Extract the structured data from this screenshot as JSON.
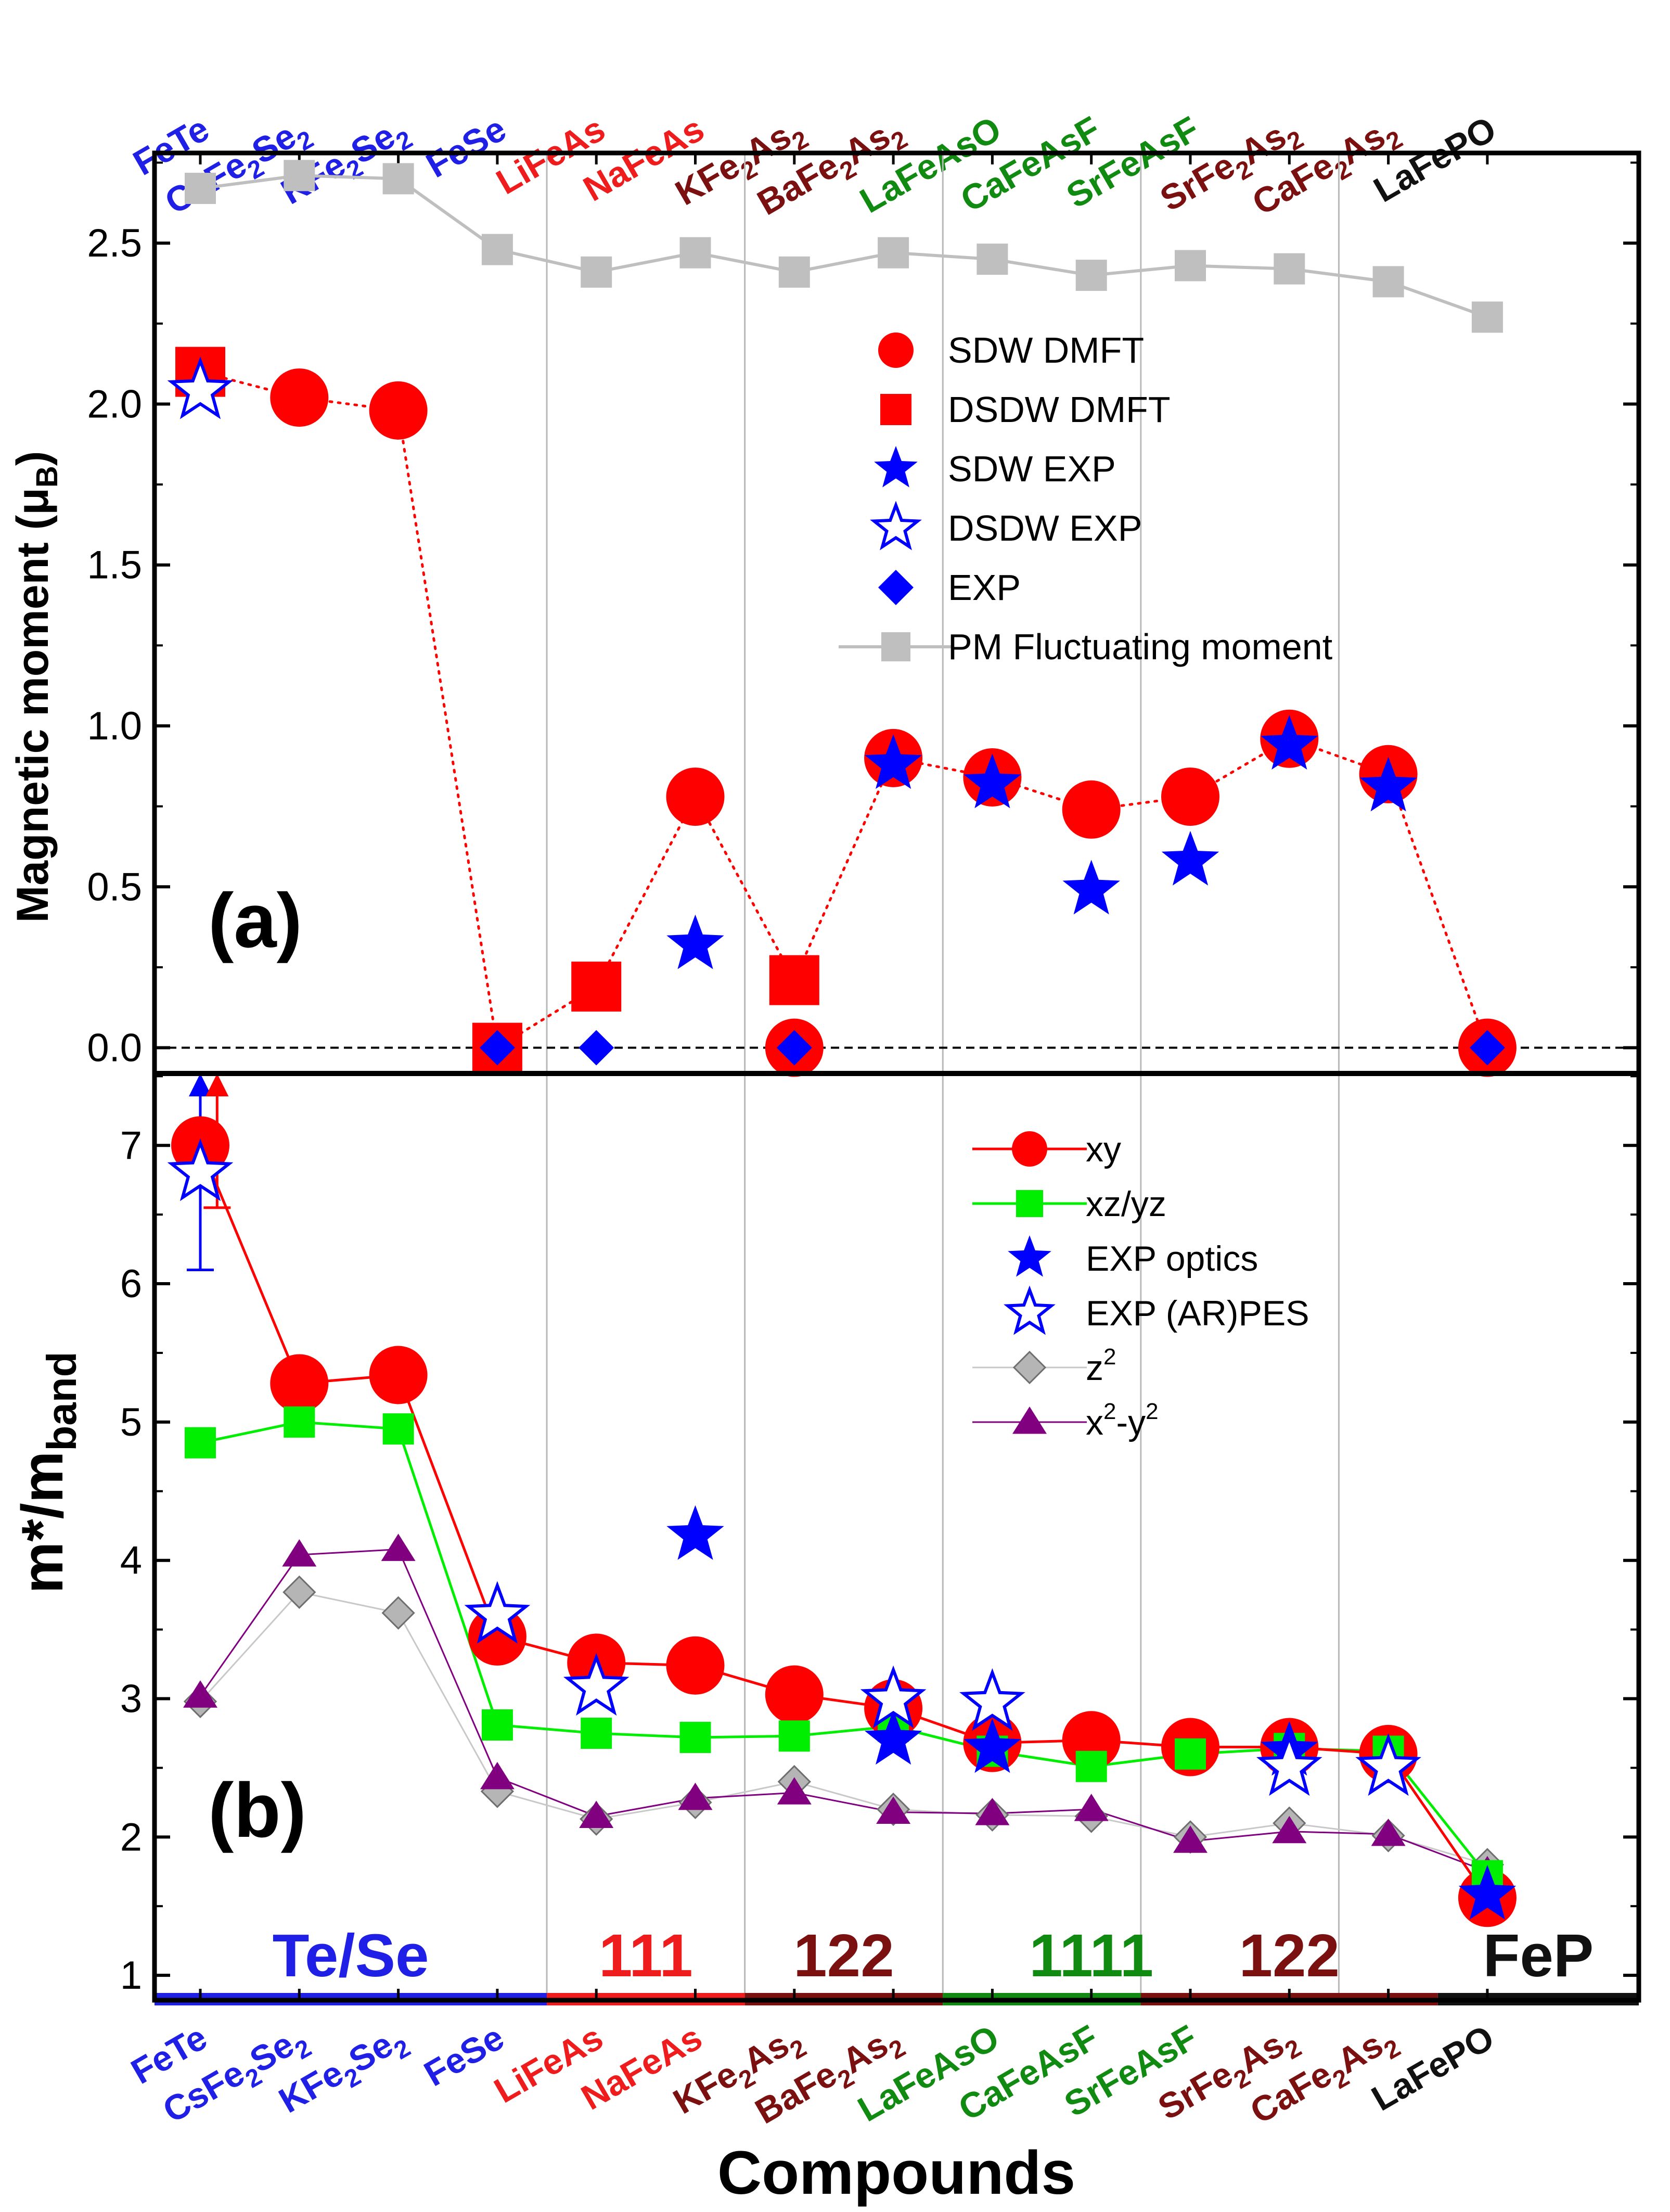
{
  "figure": {
    "xlabel": "Compounds",
    "compounds": [
      "FeTe",
      "CsFe2Se2",
      "KFe2Se2",
      "FeSe",
      "LiFeAs",
      "NaFeAs",
      "KFe2As2",
      "BaFe2As2",
      "LaFeAsO",
      "CaFeAsF",
      "SrFeAsF",
      "SrFe2As2",
      "CaFe2As2",
      "LaFePO"
    ],
    "top_labels": [
      {
        "base": "FeTe"
      },
      {
        "parts": [
          {
            "t": "CsFe"
          },
          {
            "t": "2",
            "sub": true
          },
          {
            "t": "Se"
          },
          {
            "t": "2",
            "sub": true
          }
        ]
      },
      {
        "parts": [
          {
            "t": "KFe"
          },
          {
            "t": "2",
            "sub": true
          },
          {
            "t": "Se"
          },
          {
            "t": "2",
            "sub": true
          }
        ]
      },
      {
        "base": "FeSe"
      },
      {
        "base": "LiFeAs"
      },
      {
        "base": "NaFeAs"
      },
      {
        "parts": [
          {
            "t": "KFe"
          },
          {
            "t": "2",
            "sub": true
          },
          {
            "t": "As"
          },
          {
            "t": "2",
            "sub": true
          }
        ]
      },
      {
        "parts": [
          {
            "t": "BaFe"
          },
          {
            "t": "2",
            "sub": true
          },
          {
            "t": "As"
          },
          {
            "t": "2",
            "sub": true
          }
        ]
      },
      {
        "base": "LaFeAsO"
      },
      {
        "base": "CaFeAsF"
      },
      {
        "base": "SrFeAsF"
      },
      {
        "parts": [
          {
            "t": "SrFe"
          },
          {
            "t": "2",
            "sub": true
          },
          {
            "t": "As"
          },
          {
            "t": "2",
            "sub": true
          }
        ]
      },
      {
        "parts": [
          {
            "t": "CaFe"
          },
          {
            "t": "2",
            "sub": true
          },
          {
            "t": "As"
          },
          {
            "t": "2",
            "sub": true
          }
        ]
      },
      {
        "base": "LaFePO"
      }
    ],
    "label_colors": [
      "#1f1fe6",
      "#1f1fe6",
      "#1f1fe6",
      "#1f1fe6",
      "#ee1c1c",
      "#ee1c1c",
      "#7a1010",
      "#7a1010",
      "#118a11",
      "#118a11",
      "#118a11",
      "#7a1010",
      "#7a1010",
      "#111111"
    ],
    "families": [
      {
        "name": "Te/Se",
        "from": 1,
        "to": 4,
        "color": "#1f1fe6"
      },
      {
        "name": "111",
        "from": 5,
        "to": 6,
        "color": "#ee1c1c"
      },
      {
        "name": "122",
        "from": 7,
        "to": 8,
        "color": "#7a1010"
      },
      {
        "name": "1111",
        "from": 9,
        "to": 11,
        "color": "#118a11"
      },
      {
        "name": "122",
        "from": 11,
        "to": 13,
        "color": "#7a1010"
      },
      {
        "name": "FeP",
        "from": 14,
        "to": 14,
        "color": "#111111"
      }
    ],
    "separators": [
      4.5,
      6.5,
      8.5,
      10.5,
      12.5
    ],
    "colors": {
      "red": "#ff0000",
      "green": "#00ee00",
      "blue": "#0000ff",
      "gray": "#bfbfbf",
      "purple": "#800080",
      "diamond_gray": "#b5b5b5"
    }
  },
  "chart_data": [
    {
      "panel": "(a)",
      "type": "scatter",
      "ylabel": "Magnetic moment (μ",
      "ylabel_sub": "B",
      "ylabel_end": ")",
      "ylim": [
        -0.08,
        2.78
      ],
      "yticks": [
        "0.0",
        "0.5",
        "1.0",
        "1.5",
        "2.0",
        "2.5"
      ],
      "x": [
        1,
        2,
        3,
        4,
        5,
        6,
        7,
        8,
        9,
        10,
        11,
        12,
        13,
        14
      ],
      "series": [
        {
          "name": "SDW DMFT",
          "marker": "circle",
          "points": [
            [
              2,
              2.02
            ],
            [
              3,
              1.98
            ],
            [
              6,
              0.78
            ],
            [
              7,
              0.0
            ],
            [
              8,
              0.9
            ],
            [
              9,
              0.84
            ],
            [
              10,
              0.74
            ],
            [
              11,
              0.78
            ],
            [
              12,
              0.96
            ],
            [
              13,
              0.85
            ],
            [
              14,
              0.0
            ]
          ]
        },
        {
          "name": "DSDW DMFT",
          "marker": "square",
          "points": [
            [
              1,
              2.1
            ],
            [
              4,
              0.0
            ],
            [
              5,
              0.19
            ],
            [
              7,
              0.21
            ]
          ]
        },
        {
          "name": "SDW EXP",
          "marker": "star-filled",
          "points": [
            [
              6,
              0.32
            ],
            [
              8,
              0.88
            ],
            [
              9,
              0.82
            ],
            [
              10,
              0.49
            ],
            [
              11,
              0.58
            ],
            [
              12,
              0.94
            ],
            [
              13,
              0.81
            ]
          ]
        },
        {
          "name": "DSDW EXP",
          "marker": "star-open",
          "points": [
            [
              1,
              2.04
            ]
          ]
        },
        {
          "name": "EXP",
          "marker": "diamond",
          "points": [
            [
              4,
              0.0
            ],
            [
              5,
              0.0
            ],
            [
              7,
              0.0
            ],
            [
              14,
              0.0
            ]
          ]
        },
        {
          "name": "PM Fluctuating moment",
          "marker": "square-line",
          "values": [
            2.67,
            2.71,
            2.7,
            2.48,
            2.41,
            2.47,
            2.41,
            2.47,
            2.45,
            2.4,
            2.43,
            2.42,
            2.38,
            2.27
          ]
        }
      ],
      "dmft_path": [
        [
          1,
          2.1
        ],
        [
          2,
          2.02
        ],
        [
          3,
          1.98
        ],
        [
          4,
          0.0
        ],
        [
          5,
          0.19
        ],
        [
          6,
          0.78
        ],
        [
          7,
          0.21
        ],
        [
          8,
          0.9
        ],
        [
          9,
          0.84
        ],
        [
          10,
          0.74
        ],
        [
          11,
          0.78
        ],
        [
          12,
          0.96
        ],
        [
          13,
          0.85
        ],
        [
          14,
          0.0
        ]
      ],
      "zero_line": 0.0
    },
    {
      "panel": "(b)",
      "type": "line",
      "ylabel": "m*/m",
      "ylabel_sub": "band",
      "ylim": [
        0.82,
        7.52
      ],
      "yticks": [
        "1",
        "2",
        "3",
        "4",
        "5",
        "6",
        "7"
      ],
      "x": [
        1,
        2,
        3,
        4,
        5,
        6,
        7,
        8,
        9,
        10,
        11,
        12,
        13,
        14
      ],
      "series": [
        {
          "name": "xy",
          "marker": "circle-line",
          "values": [
            7.0,
            5.28,
            5.34,
            3.45,
            3.26,
            3.24,
            3.03,
            2.93,
            2.68,
            2.7,
            2.65,
            2.65,
            2.6,
            1.56
          ]
        },
        {
          "name": "xz/yz",
          "marker": "square-line",
          "values": [
            4.85,
            5.0,
            4.95,
            2.81,
            2.75,
            2.72,
            2.73,
            2.8,
            2.62,
            2.51,
            2.6,
            2.64,
            2.62,
            1.72
          ]
        },
        {
          "name": "EXP optics",
          "marker": "star-filled",
          "points": [
            [
              6,
              4.18
            ],
            [
              8,
              2.7
            ],
            [
              9,
              2.64
            ],
            [
              12,
              2.62
            ],
            [
              14,
              1.58
            ]
          ]
        },
        {
          "name": "EXP (AR)PES",
          "marker": "star-open",
          "points": [
            [
              1,
              6.8
            ],
            [
              4,
              3.6
            ],
            [
              5,
              3.08
            ],
            [
              8,
              2.99
            ],
            [
              9,
              2.97
            ],
            [
              12,
              2.5
            ],
            [
              13,
              2.5
            ]
          ]
        },
        {
          "name": "z",
          "name_sup": "2",
          "marker": "diamond-line",
          "values": [
            2.98,
            3.77,
            3.62,
            2.33,
            2.13,
            2.25,
            2.4,
            2.2,
            2.16,
            2.15,
            2.0,
            2.1,
            2.01,
            1.8
          ]
        },
        {
          "name": "x",
          "name_sup": "2",
          "name_mid": "-y",
          "name_sup2": "2",
          "marker": "triangle-line",
          "values": [
            3.02,
            4.04,
            4.08,
            2.43,
            2.15,
            2.28,
            2.32,
            2.18,
            2.17,
            2.2,
            1.97,
            2.04,
            2.02,
            1.75
          ]
        }
      ],
      "error_bars": [
        {
          "x": 1,
          "y": 6.8,
          "low": 6.1,
          "high": 7.52,
          "arrow": true,
          "color": "blue"
        },
        {
          "x": 1.17,
          "y": 7.0,
          "low": 6.55,
          "high": 7.52,
          "arrow": true,
          "color": "red"
        }
      ]
    }
  ]
}
